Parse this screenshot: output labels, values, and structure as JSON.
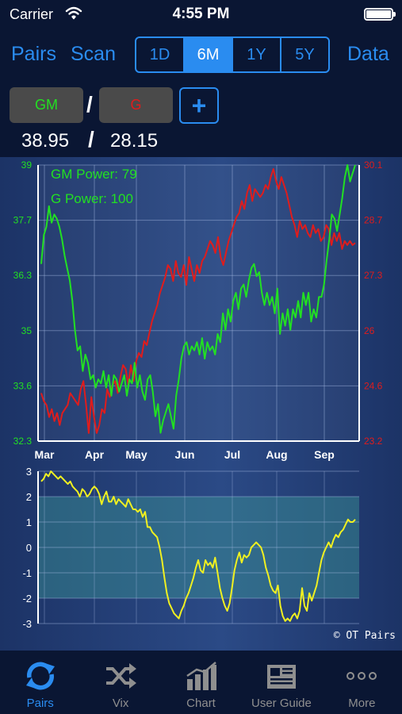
{
  "status_bar": {
    "carrier": "Carrier",
    "time": "4:55 PM"
  },
  "nav": {
    "pairs_label": "Pairs",
    "scan_label": "Scan",
    "data_label": "Data",
    "ranges": [
      "1D",
      "6M",
      "1Y",
      "5Y"
    ],
    "active_range": "6M"
  },
  "pair": {
    "ticker_a": "GM",
    "ticker_b": "G",
    "separator": "/",
    "add_label": "+",
    "price_a": "38.95",
    "price_b": "28.15",
    "color_a": "#22e022",
    "color_b": "#e01c1c"
  },
  "chart_data": [
    {
      "type": "line",
      "x_labels": [
        "Mar",
        "Apr",
        "May",
        "Jun",
        "Jul",
        "Aug",
        "Sep"
      ],
      "y_left_ticks": [
        "39",
        "37.7",
        "36.3",
        "35",
        "33.6",
        "32.3"
      ],
      "y_right_ticks": [
        "30.1",
        "28.7",
        "27.3",
        "26",
        "24.6",
        "23.2"
      ],
      "ylim_left": [
        32.3,
        39
      ],
      "ylim_right": [
        23.2,
        30.1
      ],
      "annotations": [
        "GM Power: 79",
        "G Power: 100"
      ],
      "grid": true,
      "series": [
        {
          "name": "GM",
          "axis": "left",
          "color": "#22e022",
          "values": [
            36.6,
            37.3,
            37.5,
            38.0,
            37.6,
            37.8,
            37.7,
            37.5,
            37.2,
            36.8,
            36.5,
            36.2,
            35.7,
            35.0,
            34.5,
            34.6,
            34.0,
            34.4,
            34.2,
            33.8,
            33.9,
            33.6,
            33.8,
            33.7,
            34.0,
            33.6,
            33.9,
            33.4,
            33.9,
            33.8,
            33.5,
            33.7,
            33.9,
            33.4,
            33.8,
            33.7,
            34.2,
            33.6,
            33.9,
            33.5,
            33.3,
            33.8,
            33.9,
            33.5,
            32.9,
            33.2,
            32.5,
            32.8,
            33.0,
            33.2,
            32.9,
            32.6,
            33.4,
            33.8,
            34.3,
            34.6,
            34.7,
            34.4,
            34.6,
            34.5,
            34.7,
            34.4,
            34.8,
            34.3,
            34.7,
            34.5,
            34.6,
            34.4,
            34.9,
            34.7,
            35.4,
            35.0,
            35.5,
            35.2,
            35.7,
            35.9,
            35.5,
            36.0,
            36.1,
            35.8,
            36.2,
            36.5,
            36.6,
            36.3,
            36.4,
            35.9,
            35.6,
            35.9,
            35.6,
            35.8,
            35.4,
            36.0,
            34.9,
            35.4,
            35.1,
            35.5,
            35.0,
            35.5,
            35.3,
            35.7,
            35.3,
            35.9,
            35.6,
            35.9,
            35.2,
            35.5,
            35.3,
            35.8,
            35.8,
            36.1,
            36.7,
            37.2,
            37.8,
            37.7,
            37.4,
            37.8,
            38.2,
            38.7,
            39.0,
            38.6,
            38.8,
            39.0
          ]
        },
        {
          "name": "G",
          "axis": "right",
          "color": "#e01c1c",
          "values": [
            24.4,
            24.2,
            24.1,
            23.8,
            24.0,
            23.7,
            23.9,
            23.6,
            23.9,
            24.0,
            24.1,
            24.4,
            24.3,
            24.2,
            24.1,
            24.5,
            24.7,
            24.1,
            23.4,
            24.3,
            23.8,
            23.4,
            23.6,
            24.0,
            23.9,
            24.5,
            24.3,
            24.6,
            24.7,
            24.4,
            24.8,
            25.1,
            25.0,
            24.6,
            25.1,
            24.7,
            25.2,
            25.4,
            25.3,
            25.7,
            25.6,
            25.9,
            26.2,
            26.4,
            26.6,
            26.9,
            27.1,
            27.3,
            27.6,
            27.5,
            27.2,
            27.7,
            27.4,
            27.3,
            27.6,
            27.1,
            27.8,
            27.5,
            27.2,
            27.6,
            27.4,
            27.7,
            27.8,
            28.0,
            28.2,
            28.1,
            27.9,
            28.3,
            27.8,
            27.6,
            27.9,
            28.2,
            28.4,
            28.6,
            28.8,
            28.9,
            29.2,
            29.0,
            29.4,
            29.6,
            29.2,
            29.5,
            29.4,
            29.3,
            29.4,
            29.6,
            29.5,
            29.8,
            30.0,
            29.7,
            29.5,
            29.8,
            29.6,
            29.4,
            29.1,
            28.8,
            28.6,
            28.3,
            28.7,
            28.5,
            28.6,
            28.4,
            28.3,
            28.6,
            28.4,
            28.5,
            28.2,
            28.3,
            28.6,
            28.5,
            28.1,
            28.4,
            28.2,
            28.4,
            28.0,
            28.2,
            28.1,
            28.2,
            28.1,
            28.15
          ]
        }
      ]
    },
    {
      "type": "line",
      "y_ticks": [
        "3",
        "2",
        "1",
        "0",
        "-1",
        "-2",
        "-3"
      ],
      "ylim": [
        -3,
        3
      ],
      "band": [
        -2,
        2
      ],
      "grid": true,
      "series": [
        {
          "color": "#f0f020",
          "values": [
            2.6,
            2.7,
            2.9,
            2.8,
            3.0,
            2.9,
            2.8,
            2.7,
            2.8,
            2.7,
            2.6,
            2.5,
            2.6,
            2.4,
            2.3,
            2.2,
            2.0,
            2.3,
            2.2,
            2.0,
            2.1,
            2.3,
            2.4,
            2.3,
            2.1,
            1.7,
            2.0,
            2.2,
            1.8,
            1.8,
            2.0,
            1.7,
            1.9,
            1.8,
            1.7,
            1.6,
            1.9,
            1.7,
            1.5,
            1.5,
            1.4,
            1.5,
            1.2,
            1.4,
            0.8,
            0.8,
            0.6,
            0.5,
            0.4,
            0.0,
            -0.5,
            -1.2,
            -1.8,
            -2.2,
            -2.4,
            -2.6,
            -2.7,
            -2.8,
            -2.5,
            -2.3,
            -2.0,
            -1.8,
            -1.5,
            -1.2,
            -0.8,
            -0.5,
            -0.9,
            -1.0,
            -0.5,
            -0.7,
            -0.6,
            -0.8,
            -0.4,
            -1.0,
            -1.6,
            -2.0,
            -2.3,
            -2.5,
            -2.2,
            -1.6,
            -0.9,
            -0.5,
            -0.2,
            -0.6,
            -0.3,
            -0.4,
            -0.3,
            0.0,
            0.1,
            0.2,
            0.1,
            0.0,
            -0.3,
            -0.8,
            -1.1,
            -1.5,
            -1.7,
            -1.8,
            -1.5,
            -2.3,
            -2.7,
            -2.9,
            -2.8,
            -2.9,
            -2.7,
            -2.6,
            -2.8,
            -2.5,
            -1.6,
            -2.3,
            -2.5,
            -1.8,
            -2.1,
            -1.8,
            -1.5,
            -1.0,
            -0.5,
            -0.2,
            0.0,
            0.2,
            0.0,
            0.3,
            0.5,
            0.4,
            0.6,
            0.7,
            0.9,
            1.1,
            1.0,
            1.0,
            1.1
          ]
        }
      ]
    }
  ],
  "copyright": "© OT Pairs",
  "tabs": [
    {
      "label": "Pairs",
      "icon": "refresh-icon",
      "active": true
    },
    {
      "label": "Vix",
      "icon": "shuffle-icon",
      "active": false
    },
    {
      "label": "Chart",
      "icon": "bar-chart-icon",
      "active": false
    },
    {
      "label": "User Guide",
      "icon": "newspaper-icon",
      "active": false
    },
    {
      "label": "More",
      "icon": "more-icon",
      "active": false
    }
  ]
}
